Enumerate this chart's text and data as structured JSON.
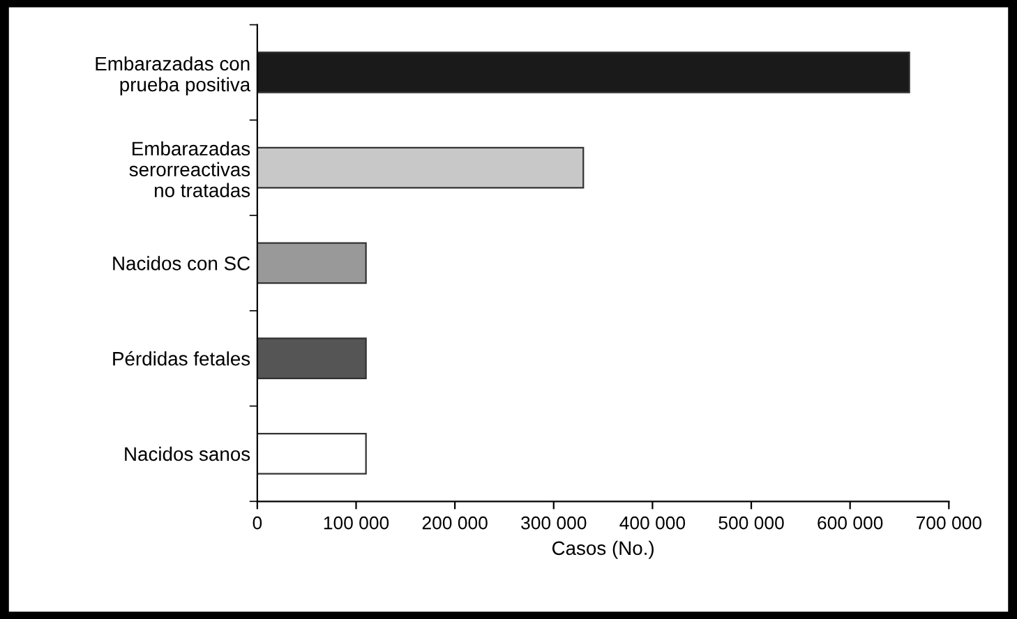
{
  "chart_data": {
    "type": "bar",
    "orientation": "horizontal",
    "xlabel": "Casos (No.)",
    "categories": [
      "Embarazadas con\nprueba positiva",
      "Embarazadas\nserorreactivas\nno tratadas",
      "Nacidos con SC",
      "Pérdidas fetales",
      "Nacidos sanos"
    ],
    "values": [
      660000,
      330000,
      110000,
      110000,
      110000
    ],
    "colors": [
      "#1a1a1a",
      "#c8c8c8",
      "#999999",
      "#555555",
      "#ffffff"
    ],
    "xlim": [
      0,
      700000
    ],
    "xticks": [
      {
        "value": 0,
        "label": "0"
      },
      {
        "value": 100000,
        "label": "100 000"
      },
      {
        "value": 200000,
        "label": "200 000"
      },
      {
        "value": 300000,
        "label": "300 000"
      },
      {
        "value": 400000,
        "label": "400 000"
      },
      {
        "value": 500000,
        "label": "500 000"
      },
      {
        "value": 600000,
        "label": "600 000"
      },
      {
        "value": 700000,
        "label": "700 000"
      }
    ],
    "grid": false
  }
}
